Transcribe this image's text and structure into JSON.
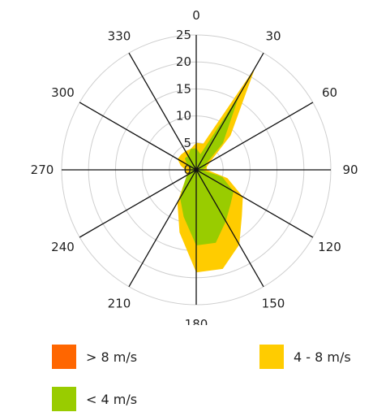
{
  "chart_data": {
    "type": "radar-area",
    "title": "",
    "angles": [
      0,
      30,
      60,
      90,
      120,
      150,
      180,
      210,
      240,
      270,
      300,
      330
    ],
    "angle_labels": [
      "0",
      "30",
      "60",
      "90",
      "120",
      "150",
      "180",
      "210",
      "240",
      "270",
      "300",
      "330"
    ],
    "radial_ticks": [
      0,
      5,
      10,
      15,
      20,
      25
    ],
    "rlim": [
      0,
      25
    ],
    "grid": true,
    "directions": [
      0,
      15,
      30,
      45,
      60,
      75,
      90,
      105,
      120,
      135,
      150,
      165,
      180,
      195,
      210,
      225,
      240,
      255,
      270,
      285,
      300,
      315,
      330,
      345
    ],
    "series": [
      {
        "name": "4 - 8 m/s",
        "color": "#FFCC00",
        "values": [
          5,
          5,
          22,
          9,
          3,
          2,
          2,
          6,
          10,
          12,
          16,
          19,
          19,
          12,
          7,
          3,
          2,
          2,
          2,
          3,
          4,
          4,
          4,
          4
        ]
      },
      {
        "name": "> 8 m/s",
        "color": "#FF6600",
        "values": [
          3,
          3,
          2,
          2,
          1,
          1,
          1,
          2,
          2,
          2,
          3,
          3,
          3,
          2,
          2,
          1,
          1,
          1,
          1,
          1,
          2,
          2,
          2,
          2
        ]
      },
      {
        "name": "< 4 m/s",
        "color": "#99CC00",
        "values": [
          4,
          3,
          16,
          7,
          2,
          2,
          1,
          5,
          8,
          9,
          11,
          14,
          14,
          9,
          6,
          3,
          2,
          1,
          1,
          1,
          2,
          3,
          3,
          4
        ]
      }
    ],
    "legend": [
      {
        "label": "> 8 m/s",
        "color": "#FF6600"
      },
      {
        "label": "4 - 8 m/s",
        "color": "#FFCC00"
      },
      {
        "label": "< 4 m/s",
        "color": "#99CC00"
      }
    ],
    "legend_position": "bottom"
  }
}
